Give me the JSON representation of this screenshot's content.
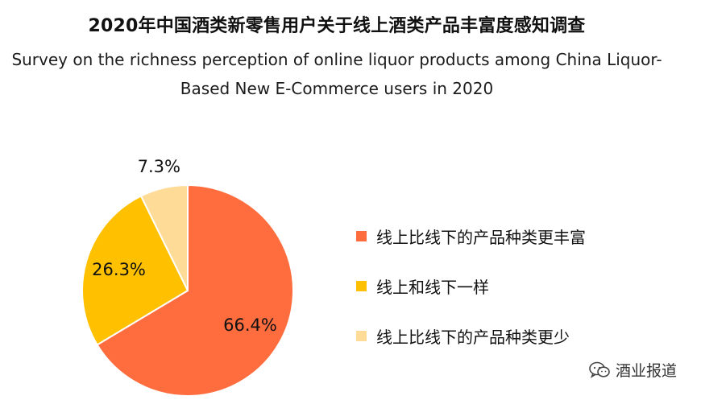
{
  "title_cn": "2020年中国酒类新零售用户关于线上酒类产品丰富度感知调查",
  "title_en_line1": "Survey on the richness perception of online liquor products among China Liquor-",
  "title_en_line2": "Based New E-Commerce users in 2020",
  "watermark": {
    "text": "酒业报道",
    "icon": "wechat-icon"
  },
  "chart_data": {
    "type": "pie",
    "categories": [
      "线上比线下的产品种类更丰富",
      "线上和线下一样",
      "线上比线下的产品种类更少"
    ],
    "values": [
      66.4,
      26.3,
      7.3
    ],
    "labels": [
      "66.4%",
      "26.3%",
      "7.3%"
    ],
    "colors": [
      "#FF6D3F",
      "#FFC000",
      "#FFDB98"
    ],
    "legend_position": "right",
    "start_angle_deg": 0,
    "direction": "clockwise"
  }
}
